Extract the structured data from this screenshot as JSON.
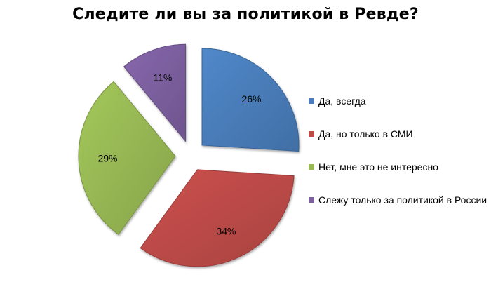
{
  "chart_data": {
    "type": "pie",
    "title": "Следите ли вы за политикой в Ревде?",
    "slices": [
      {
        "label": "Да, всегда",
        "value": 26,
        "value_label": "26%",
        "color": "#4a7ebb"
      },
      {
        "label": "Да, но только в СМИ",
        "value": 34,
        "value_label": "34%",
        "color": "#be4b48"
      },
      {
        "label": "Нет, мне это не интересно",
        "value": 29,
        "value_label": "29%",
        "color": "#98b954"
      },
      {
        "label": "Слежу только за политикой в России",
        "value": 11,
        "value_label": "11%",
        "color": "#7d60a0"
      }
    ],
    "exploded": true,
    "legend_position": "right"
  }
}
